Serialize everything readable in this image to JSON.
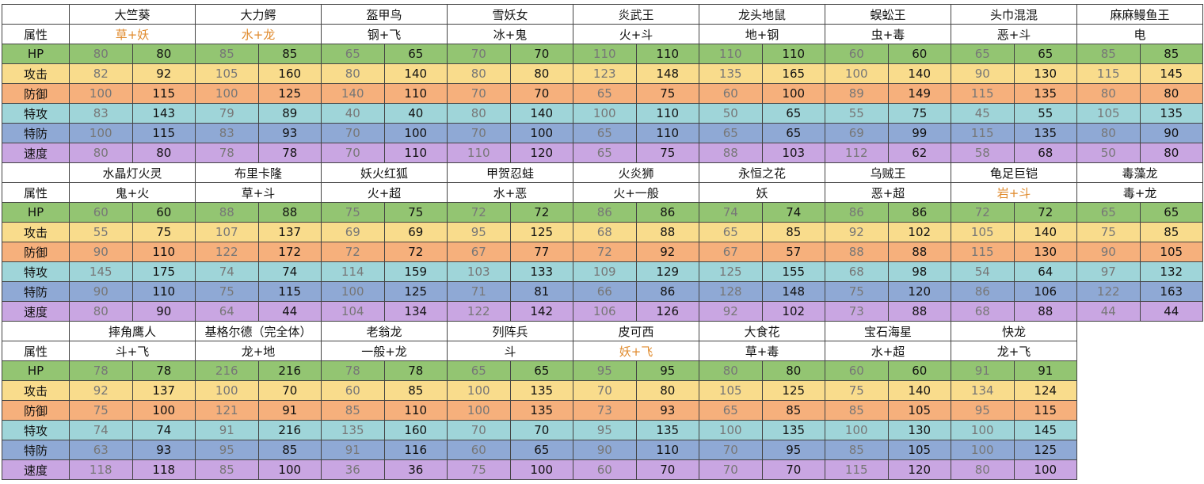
{
  "row_labels": [
    "属性",
    "HP",
    "攻击",
    "防御",
    "特攻",
    "特防",
    "速度"
  ],
  "row_colors": [
    "#ffffff",
    "#93c572",
    "#f9dc8c",
    "#f6b07c",
    "#9fd5d9",
    "#8fa9d5",
    "#c9a6e2"
  ],
  "blocks": [
    {
      "pokemon": [
        {
          "name": "大竺葵",
          "type": "草+妖",
          "type_color": "#e08a2c",
          "stats": [
            [
              80,
              80
            ],
            [
              82,
              92
            ],
            [
              100,
              115
            ],
            [
              83,
              143
            ],
            [
              100,
              115
            ],
            [
              80,
              80
            ]
          ]
        },
        {
          "name": "大力鳄",
          "type": "水+龙",
          "type_color": "#e08a2c",
          "stats": [
            [
              85,
              85
            ],
            [
              105,
              160
            ],
            [
              100,
              125
            ],
            [
              79,
              89
            ],
            [
              83,
              93
            ],
            [
              78,
              78
            ]
          ]
        },
        {
          "name": "盔甲鸟",
          "type": "钢+飞",
          "stats": [
            [
              65,
              65
            ],
            [
              80,
              140
            ],
            [
              140,
              110
            ],
            [
              40,
              40
            ],
            [
              70,
              100
            ],
            [
              70,
              110
            ]
          ]
        },
        {
          "name": "雪妖女",
          "type": "冰+鬼",
          "stats": [
            [
              70,
              70
            ],
            [
              80,
              80
            ],
            [
              70,
              70
            ],
            [
              80,
              140
            ],
            [
              70,
              100
            ],
            [
              110,
              120
            ]
          ]
        },
        {
          "name": "炎武王",
          "type": "火+斗",
          "stats": [
            [
              110,
              110
            ],
            [
              123,
              148
            ],
            [
              65,
              75
            ],
            [
              100,
              110
            ],
            [
              65,
              110
            ],
            [
              65,
              75
            ]
          ]
        },
        {
          "name": "龙头地鼠",
          "type": "地+钢",
          "stats": [
            [
              110,
              110
            ],
            [
              135,
              165
            ],
            [
              60,
              100
            ],
            [
              50,
              65
            ],
            [
              65,
              65
            ],
            [
              88,
              103
            ]
          ]
        },
        {
          "name": "蜈蚣王",
          "type": "虫+毒",
          "stats": [
            [
              60,
              60
            ],
            [
              100,
              140
            ],
            [
              89,
              149
            ],
            [
              55,
              75
            ],
            [
              69,
              99
            ],
            [
              112,
              62
            ]
          ]
        },
        {
          "name": "头巾混混",
          "type": "恶+斗",
          "stats": [
            [
              65,
              65
            ],
            [
              90,
              130
            ],
            [
              115,
              135
            ],
            [
              45,
              55
            ],
            [
              115,
              135
            ],
            [
              58,
              68
            ]
          ]
        },
        {
          "name": "麻麻鳗鱼王",
          "type": "电",
          "stats": [
            [
              85,
              85
            ],
            [
              115,
              145
            ],
            [
              80,
              80
            ],
            [
              105,
              135
            ],
            [
              80,
              90
            ],
            [
              50,
              80
            ]
          ]
        }
      ]
    },
    {
      "pokemon": [
        {
          "name": "水晶灯火灵",
          "type": "鬼+火",
          "stats": [
            [
              60,
              60
            ],
            [
              55,
              75
            ],
            [
              90,
              110
            ],
            [
              145,
              175
            ],
            [
              90,
              110
            ],
            [
              80,
              90
            ]
          ]
        },
        {
          "name": "布里卡隆",
          "type": "草+斗",
          "stats": [
            [
              88,
              88
            ],
            [
              107,
              137
            ],
            [
              122,
              172
            ],
            [
              74,
              74
            ],
            [
              75,
              115
            ],
            [
              64,
              44
            ]
          ]
        },
        {
          "name": "妖火红狐",
          "type": "火+超",
          "stats": [
            [
              75,
              75
            ],
            [
              69,
              69
            ],
            [
              72,
              72
            ],
            [
              114,
              159
            ],
            [
              100,
              125
            ],
            [
              104,
              134
            ]
          ]
        },
        {
          "name": "甲贺忍蛙",
          "type": "水+恶",
          "stats": [
            [
              72,
              72
            ],
            [
              95,
              125
            ],
            [
              67,
              77
            ],
            [
              103,
              133
            ],
            [
              71,
              81
            ],
            [
              122,
              142
            ]
          ]
        },
        {
          "name": "火炎狮",
          "type": "火+一般",
          "stats": [
            [
              86,
              86
            ],
            [
              68,
              88
            ],
            [
              72,
              92
            ],
            [
              109,
              129
            ],
            [
              66,
              86
            ],
            [
              106,
              126
            ]
          ]
        },
        {
          "name": "永恒之花",
          "type": "妖",
          "stats": [
            [
              74,
              74
            ],
            [
              65,
              85
            ],
            [
              67,
              57
            ],
            [
              125,
              155
            ],
            [
              128,
              148
            ],
            [
              92,
              102
            ]
          ]
        },
        {
          "name": "乌贼王",
          "type": "恶+超",
          "stats": [
            [
              86,
              86
            ],
            [
              92,
              102
            ],
            [
              88,
              88
            ],
            [
              68,
              98
            ],
            [
              75,
              120
            ],
            [
              73,
              88
            ]
          ]
        },
        {
          "name": "龟足巨铠",
          "type": "岩+斗",
          "type_color": "#e08a2c",
          "stats": [
            [
              72,
              72
            ],
            [
              105,
              140
            ],
            [
              115,
              130
            ],
            [
              54,
              64
            ],
            [
              86,
              106
            ],
            [
              68,
              88
            ]
          ]
        },
        {
          "name": "毒藻龙",
          "type": "毒+龙",
          "stats": [
            [
              65,
              65
            ],
            [
              75,
              85
            ],
            [
              90,
              105
            ],
            [
              97,
              132
            ],
            [
              122,
              163
            ],
            [
              44,
              44
            ]
          ]
        }
      ]
    },
    {
      "pokemon": [
        {
          "name": "摔角鹰人",
          "type": "斗+飞",
          "stats": [
            [
              78,
              78
            ],
            [
              92,
              137
            ],
            [
              75,
              100
            ],
            [
              74,
              74
            ],
            [
              63,
              93
            ],
            [
              118,
              118
            ]
          ]
        },
        {
          "name": "基格尔德（完全体）",
          "type": "龙+地",
          "stats": [
            [
              216,
              216
            ],
            [
              100,
              70
            ],
            [
              121,
              91
            ],
            [
              91,
              216
            ],
            [
              95,
              85
            ],
            [
              85,
              100
            ]
          ]
        },
        {
          "name": "老翁龙",
          "type": "一般+龙",
          "stats": [
            [
              78,
              78
            ],
            [
              60,
              85
            ],
            [
              85,
              110
            ],
            [
              135,
              160
            ],
            [
              91,
              116
            ],
            [
              36,
              36
            ]
          ]
        },
        {
          "name": "列阵兵",
          "type": "斗",
          "stats": [
            [
              65,
              65
            ],
            [
              100,
              135
            ],
            [
              100,
              135
            ],
            [
              70,
              70
            ],
            [
              60,
              65
            ],
            [
              75,
              100
            ]
          ]
        },
        {
          "name": "皮可西",
          "type": "妖+飞",
          "type_color": "#e08a2c",
          "stats": [
            [
              95,
              95
            ],
            [
              70,
              80
            ],
            [
              73,
              93
            ],
            [
              95,
              135
            ],
            [
              90,
              110
            ],
            [
              60,
              70
            ]
          ]
        },
        {
          "name": "大食花",
          "type": "草+毒",
          "stats": [
            [
              80,
              80
            ],
            [
              105,
              125
            ],
            [
              65,
              85
            ],
            [
              100,
              135
            ],
            [
              70,
              95
            ],
            [
              70,
              70
            ]
          ]
        },
        {
          "name": "宝石海星",
          "type": "水+超",
          "stats": [
            [
              60,
              60
            ],
            [
              75,
              140
            ],
            [
              85,
              105
            ],
            [
              100,
              130
            ],
            [
              85,
              105
            ],
            [
              115,
              120
            ]
          ]
        },
        {
          "name": "快龙",
          "type": "龙+飞",
          "stats": [
            [
              91,
              91
            ],
            [
              134,
              124
            ],
            [
              95,
              115
            ],
            [
              100,
              145
            ],
            [
              100,
              125
            ],
            [
              80,
              100
            ]
          ]
        }
      ]
    }
  ]
}
